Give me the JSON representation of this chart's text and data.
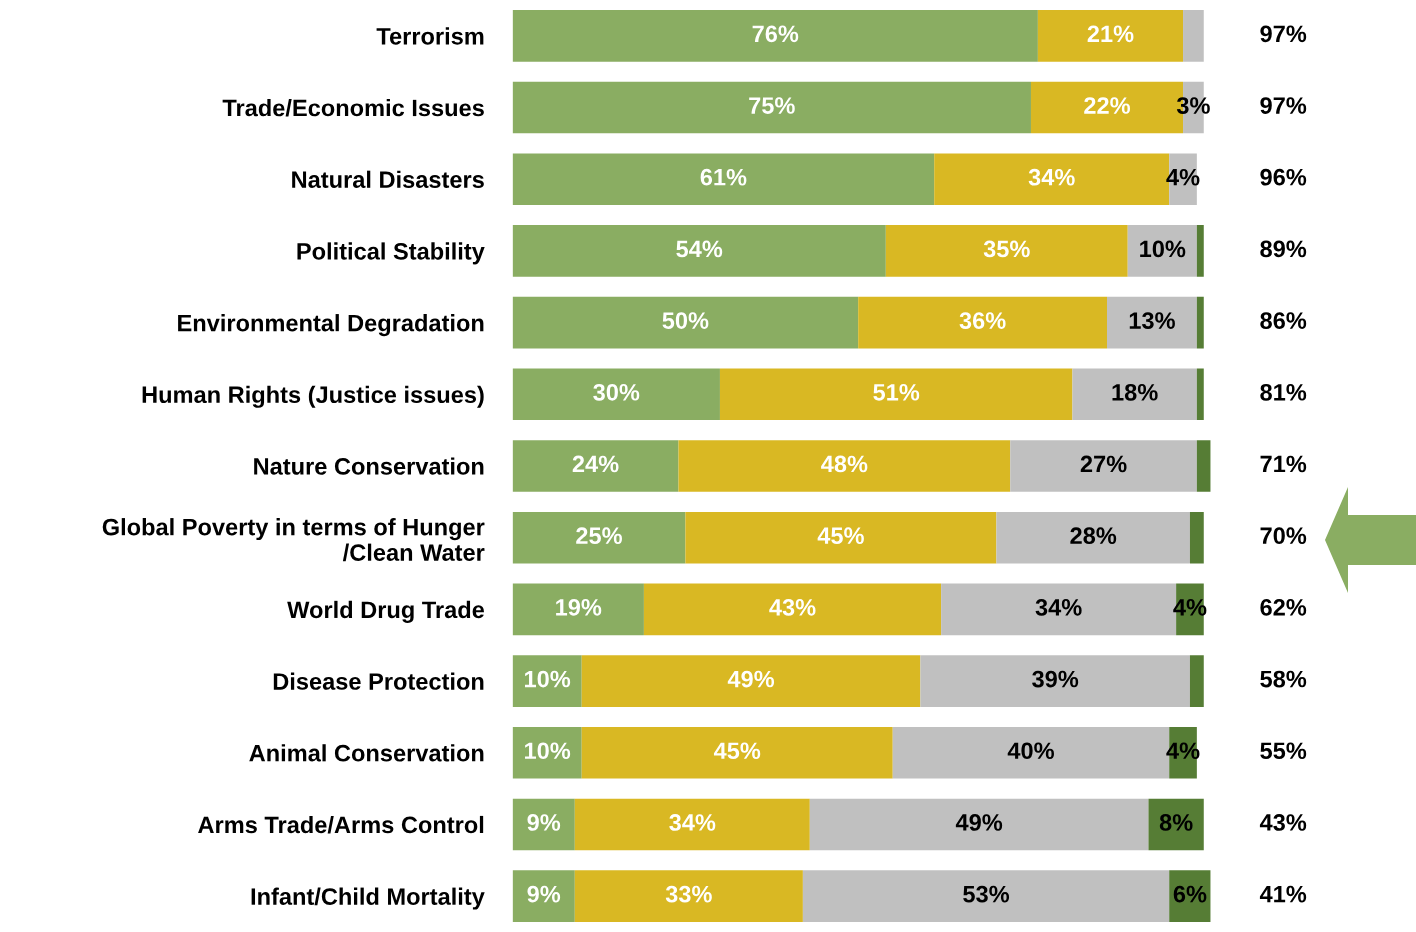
{
  "chart_data": {
    "type": "bar",
    "orientation": "horizontal",
    "stacked": true,
    "tick_labels": "y",
    "xlim": [
      0,
      101
    ],
    "categories": [
      "Terrorism",
      "Trade/Economic Issues",
      "Natural Disasters",
      "Political Stability",
      "Environmental Degradation",
      "Human Rights (Justice issues)",
      "Nature Conservation",
      "Global Poverty in terms of Hunger\n/Clean Water",
      "World Drug Trade",
      "Disease Protection",
      "Animal Conservation",
      "Arms Trade/Arms Control",
      "Infant/Child Mortality"
    ],
    "series": [
      {
        "color": "#8aad62",
        "values": [
          76,
          75,
          61,
          54,
          50,
          30,
          24,
          25,
          19,
          10,
          10,
          9,
          9
        ],
        "value_labels": [
          "76%",
          "75%",
          "61%",
          "54%",
          "50%",
          "30%",
          "24%",
          "25%",
          "19%",
          "10%",
          "10%",
          "9%",
          "9%"
        ]
      },
      {
        "color": "#d9b823",
        "values": [
          21,
          22,
          34,
          35,
          36,
          51,
          48,
          45,
          43,
          49,
          45,
          34,
          33
        ],
        "value_labels": [
          "21%",
          "22%",
          "34%",
          "35%",
          "36%",
          "51%",
          "48%",
          "45%",
          "43%",
          "49%",
          "45%",
          "34%",
          "33%"
        ]
      },
      {
        "color": "#c0c0c0",
        "values": [
          3,
          3,
          4,
          10,
          13,
          18,
          27,
          28,
          34,
          39,
          40,
          49,
          53
        ],
        "value_labels": [
          null,
          "3%",
          "4%",
          "10%",
          "13%",
          "18%",
          "27%",
          "28%",
          "34%",
          "39%",
          "40%",
          "49%",
          "53%"
        ]
      },
      {
        "color": "#567d35",
        "values": [
          0,
          0,
          0,
          1,
          1,
          1,
          2,
          2,
          4,
          2,
          4,
          8,
          6
        ],
        "value_labels": [
          null,
          null,
          null,
          null,
          null,
          null,
          null,
          null,
          "4%",
          null,
          "4%",
          "8%",
          "6%"
        ]
      }
    ],
    "annotations": [
      "97%",
      "97%",
      "96%",
      "89%",
      "86%",
      "81%",
      "71%",
      "70%",
      "62%",
      "58%",
      "55%",
      "43%",
      "41%"
    ]
  }
}
